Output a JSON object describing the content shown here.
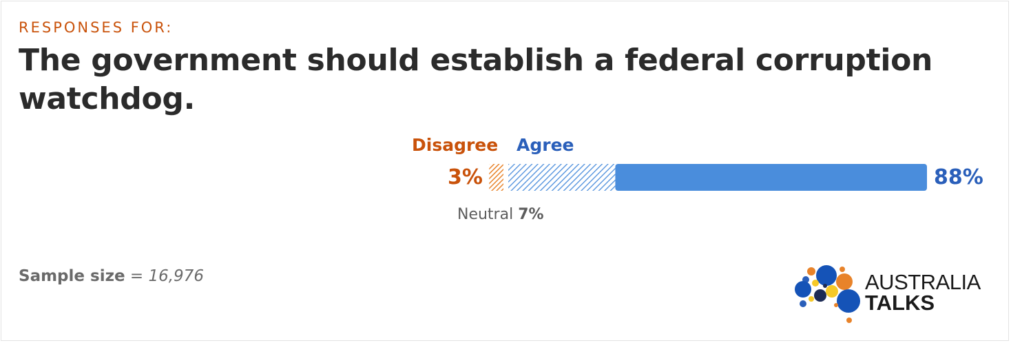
{
  "kicker": "RESPONSES FOR:",
  "title": "The government should establish a federal corruption watchdog.",
  "sample": {
    "label": "Sample size",
    "value": "= 16,976"
  },
  "brand": {
    "line1": "AUSTRALIA",
    "line2": "TALKS"
  },
  "colors": {
    "disagree": "#e8832a",
    "disagree_text": "#c9520a",
    "agree": "#4a8ddc",
    "agree_text": "#2a5fba"
  },
  "chart_data": {
    "type": "bar",
    "orientation": "horizontal-diverging",
    "title": "The government should establish a federal corruption watchdog.",
    "unit": "%",
    "categories": [
      "Disagree",
      "Neutral",
      "Agree"
    ],
    "values": [
      3,
      7,
      88
    ],
    "labels": {
      "disagree": "Disagree",
      "agree": "Agree",
      "neutral": "Neutral",
      "disagree_pct": "3%",
      "neutral_pct": "7%",
      "agree_pct": "88%"
    }
  }
}
